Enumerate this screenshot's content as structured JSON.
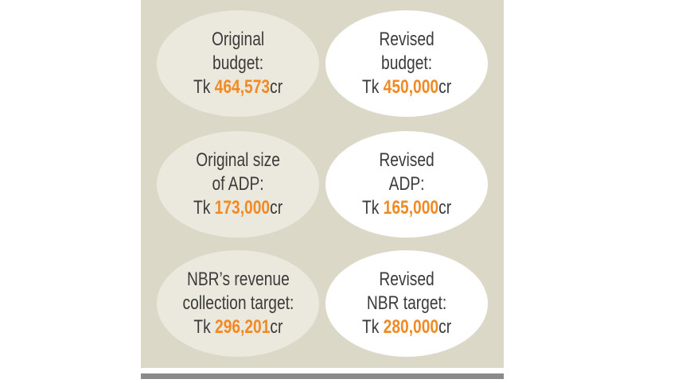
{
  "items": [
    {
      "lines": [
        "Original",
        "budget:"
      ],
      "prefix": "Tk",
      "value": "464,573",
      "unit": "cr"
    },
    {
      "lines": [
        "Revised",
        "budget:"
      ],
      "prefix": "Tk",
      "value": "450,000",
      "unit": "cr"
    },
    {
      "lines": [
        "Original size",
        "of ADP:"
      ],
      "prefix": "Tk",
      "value": "173,000",
      "unit": "cr"
    },
    {
      "lines": [
        "Revised",
        "ADP:"
      ],
      "prefix": "Tk",
      "value": "165,000",
      "unit": "cr"
    },
    {
      "lines": [
        "NBR’s revenue",
        "collection target:"
      ],
      "prefix": "Tk",
      "value": "296,201",
      "unit": "cr"
    },
    {
      "lines": [
        "Revised",
        "NBR target:"
      ],
      "prefix": "Tk",
      "value": "280,000",
      "unit": "cr"
    }
  ]
}
